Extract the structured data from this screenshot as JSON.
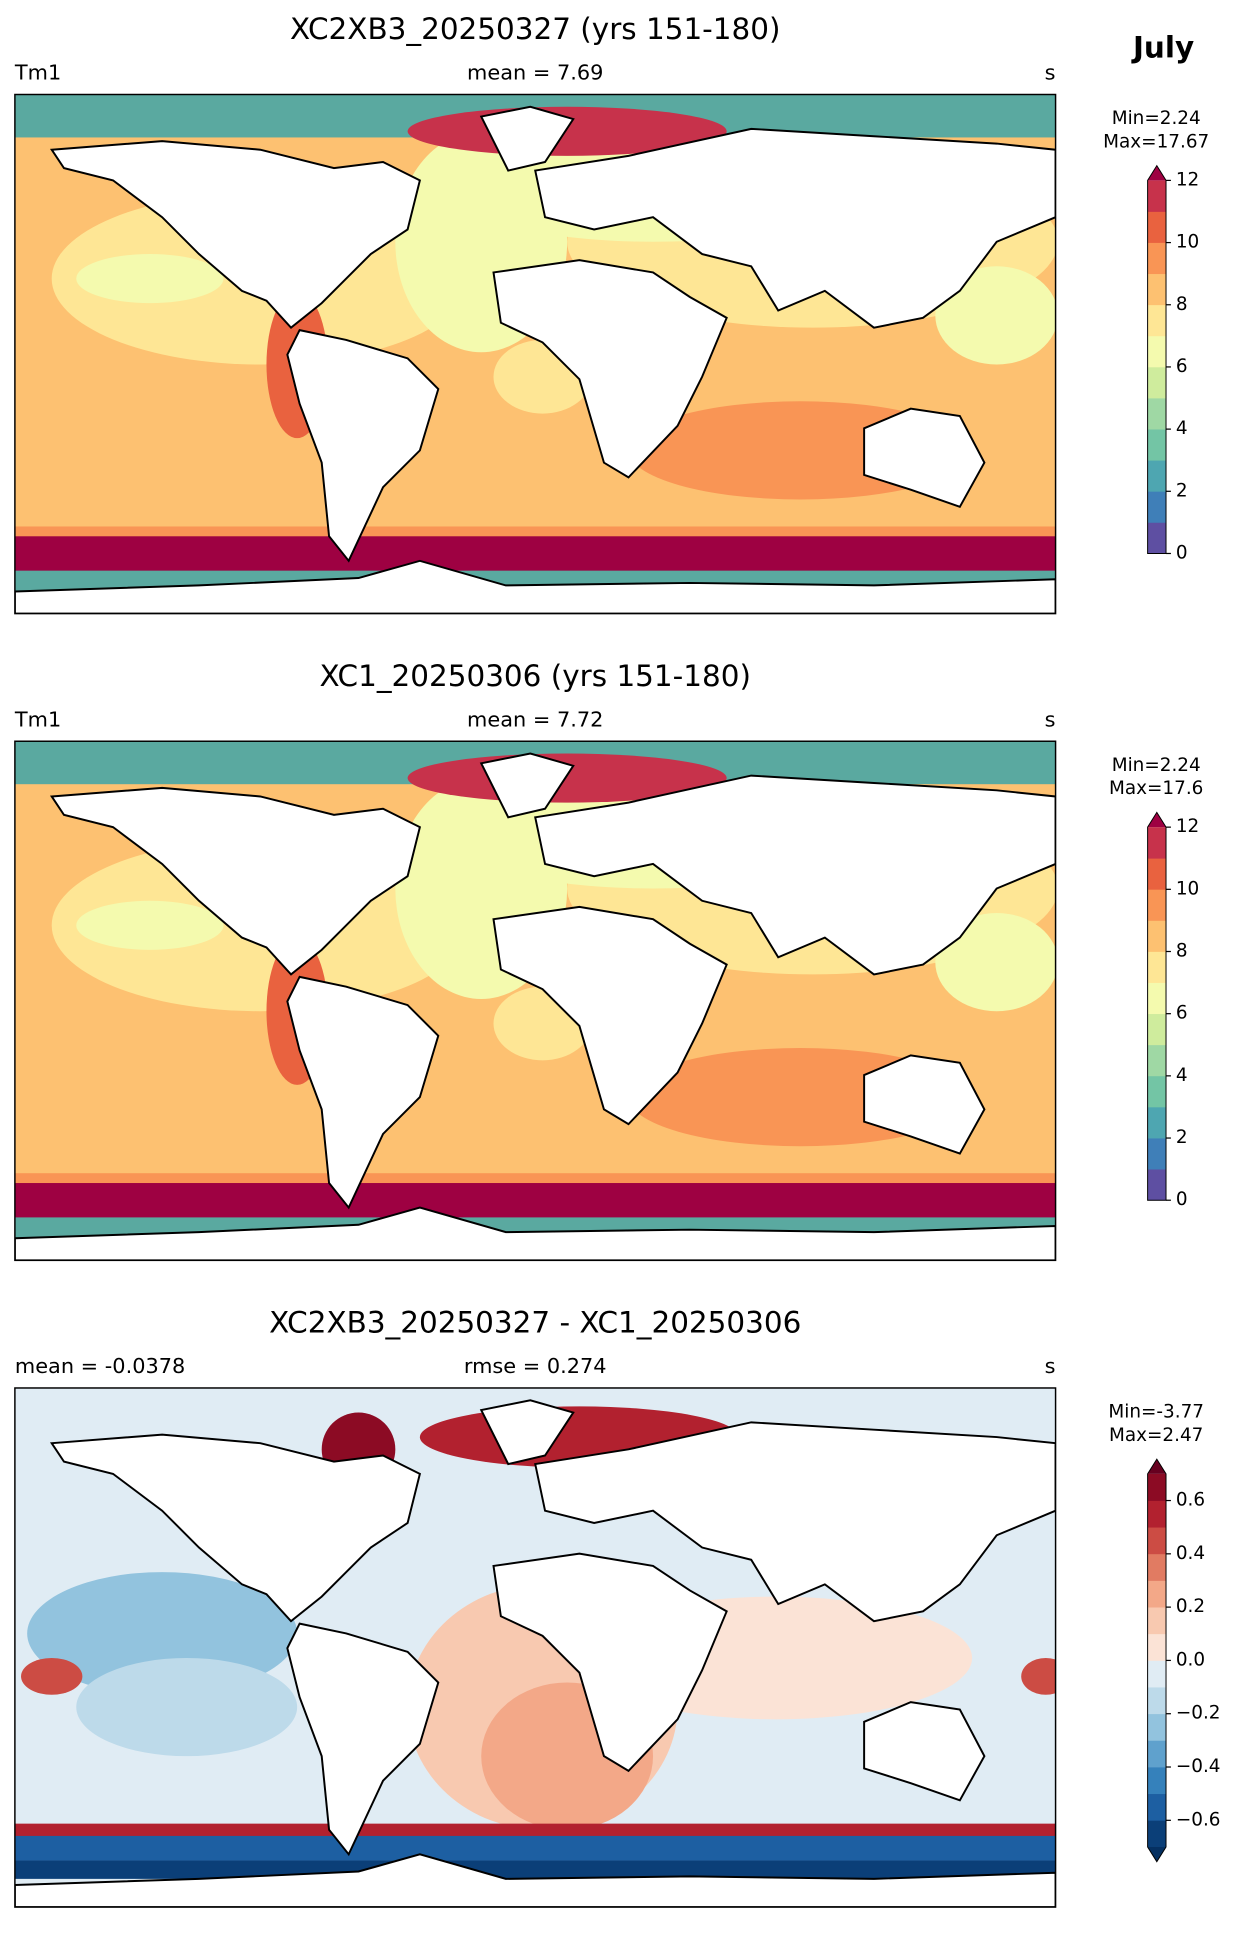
{
  "title": "July",
  "panels": [
    {
      "title": "XC2XB3_20250327 (yrs 151-180)",
      "left": "Tm1",
      "center": "mean = 7.69",
      "right": "s",
      "colorbar": {
        "min_text": "Min=2.24",
        "max_text": "Max=17.67",
        "extend": "max",
        "levels": [
          0,
          1,
          2,
          3,
          4,
          5,
          6,
          7,
          8,
          9,
          10,
          11,
          12
        ],
        "colors": [
          "#5e4fa2",
          "#3f7fb8",
          "#4ea6b1",
          "#73c5a5",
          "#9fd8a4",
          "#cfec9d",
          "#f4faae",
          "#fee695",
          "#fdc171",
          "#f99555",
          "#e9623f",
          "#c7324b"
        ],
        "extend_max_color": "#9e0142",
        "ticks": [
          0,
          2,
          4,
          6,
          8,
          10,
          12
        ]
      }
    },
    {
      "title": "XC1_20250306 (yrs 151-180)",
      "left": "Tm1",
      "center": "mean = 7.72",
      "right": "s",
      "colorbar": {
        "min_text": "Min=2.24",
        "max_text": "Max=17.6",
        "extend": "max",
        "levels": [
          0,
          1,
          2,
          3,
          4,
          5,
          6,
          7,
          8,
          9,
          10,
          11,
          12
        ],
        "colors": [
          "#5e4fa2",
          "#3f7fb8",
          "#4ea6b1",
          "#73c5a5",
          "#9fd8a4",
          "#cfec9d",
          "#f4faae",
          "#fee695",
          "#fdc171",
          "#f99555",
          "#e9623f",
          "#c7324b"
        ],
        "extend_max_color": "#9e0142",
        "ticks": [
          0,
          2,
          4,
          6,
          8,
          10,
          12
        ]
      }
    },
    {
      "title": "XC2XB3_20250327 - XC1_20250306",
      "left": "mean = -0.0378",
      "center": "rmse = 0.274",
      "right": "s",
      "colorbar": {
        "min_text": "Min=-3.77",
        "max_text": "Max=2.47",
        "extend": "both",
        "levels": [
          -0.7,
          -0.6,
          -0.5,
          -0.4,
          -0.3,
          -0.2,
          -0.1,
          0,
          0.1,
          0.2,
          0.3,
          0.4,
          0.5,
          0.6,
          0.7
        ],
        "colors": [
          "#0b3f78",
          "#1d5fa2",
          "#3581bb",
          "#5fa1cd",
          "#92c3de",
          "#bddaea",
          "#e0ecf4",
          "#fbe3d6",
          "#f8c9b0",
          "#f3a888",
          "#e17b62",
          "#cc4c44",
          "#b2212f",
          "#8c0b24"
        ],
        "extend_min_color": "#053061",
        "extend_max_color": "#67001f",
        "ticks": [
          {
            "value": -0.6,
            "label": "−0.6"
          },
          {
            "value": -0.4,
            "label": "−0.4"
          },
          {
            "value": -0.2,
            "label": "−0.2"
          },
          {
            "value": 0,
            "label": "0.0"
          },
          0.2,
          0.4,
          0.6
        ]
      }
    }
  ]
}
